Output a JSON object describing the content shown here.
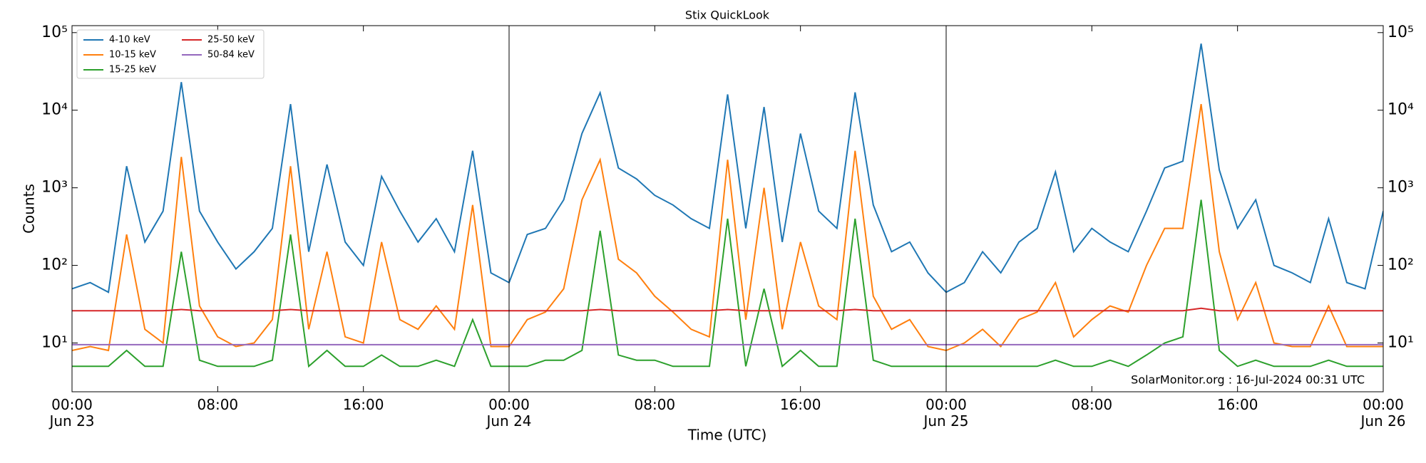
{
  "chart_data": {
    "type": "line",
    "title": "Stix QuickLook",
    "xlabel": "Time (UTC)",
    "ylabel": "Counts",
    "annotation": "SolarMonitor.org : 16-Jul-2024 00:31 UTC",
    "log_y": true,
    "grid": false,
    "legend": "upper left",
    "legend_columns": 2,
    "day_separators": true,
    "right_axis_labels": true,
    "x": [
      "Jun 23 00:00",
      "Jun 23 01:00",
      "Jun 23 02:00",
      "Jun 23 03:00",
      "Jun 23 04:00",
      "Jun 23 05:00",
      "Jun 23 06:00",
      "Jun 23 07:00",
      "Jun 23 08:00",
      "Jun 23 09:00",
      "Jun 23 10:00",
      "Jun 23 11:00",
      "Jun 23 12:00",
      "Jun 23 13:00",
      "Jun 23 14:00",
      "Jun 23 15:00",
      "Jun 23 16:00",
      "Jun 23 17:00",
      "Jun 23 18:00",
      "Jun 23 19:00",
      "Jun 23 20:00",
      "Jun 23 21:00",
      "Jun 23 22:00",
      "Jun 23 23:00",
      "Jun 24 00:00",
      "Jun 24 01:00",
      "Jun 24 02:00",
      "Jun 24 03:00",
      "Jun 24 04:00",
      "Jun 24 05:00",
      "Jun 24 06:00",
      "Jun 24 07:00",
      "Jun 24 08:00",
      "Jun 24 09:00",
      "Jun 24 10:00",
      "Jun 24 11:00",
      "Jun 24 12:00",
      "Jun 24 13:00",
      "Jun 24 14:00",
      "Jun 24 15:00",
      "Jun 24 16:00",
      "Jun 24 17:00",
      "Jun 24 18:00",
      "Jun 24 19:00",
      "Jun 24 20:00",
      "Jun 24 21:00",
      "Jun 24 22:00",
      "Jun 24 23:00",
      "Jun 25 00:00",
      "Jun 25 01:00",
      "Jun 25 02:00",
      "Jun 25 03:00",
      "Jun 25 04:00",
      "Jun 25 05:00",
      "Jun 25 06:00",
      "Jun 25 07:00",
      "Jun 25 08:00",
      "Jun 25 09:00",
      "Jun 25 10:00",
      "Jun 25 11:00",
      "Jun 25 12:00",
      "Jun 25 13:00",
      "Jun 25 14:00",
      "Jun 25 15:00",
      "Jun 25 16:00",
      "Jun 25 17:00",
      "Jun 25 18:00",
      "Jun 25 19:00",
      "Jun 25 20:00",
      "Jun 25 21:00",
      "Jun 25 22:00",
      "Jun 25 23:00",
      "Jun 26 00:00"
    ],
    "series": [
      {
        "name": "4-10 keV",
        "color": "#1f77b4",
        "values": [
          50,
          60,
          45,
          1900,
          200,
          500,
          23000,
          500,
          200,
          90,
          150,
          300,
          12000,
          150,
          2000,
          200,
          100,
          1400,
          500,
          200,
          400,
          150,
          3000,
          80,
          60,
          250,
          300,
          700,
          5000,
          16800,
          1800,
          1300,
          800,
          600,
          400,
          300,
          16000,
          300,
          11000,
          200,
          5000,
          500,
          300,
          17000,
          600,
          150,
          200,
          80,
          45,
          60,
          150,
          80,
          200,
          300,
          1600,
          150,
          300,
          200,
          150,
          500,
          1800,
          2200,
          72000,
          1700,
          300,
          700,
          100,
          80,
          60,
          400,
          60,
          50,
          500
        ]
      },
      {
        "name": "10-15 keV",
        "color": "#ff7f0e",
        "values": [
          8,
          9,
          8,
          250,
          15,
          10,
          2500,
          30,
          12,
          9,
          10,
          20,
          1900,
          15,
          150,
          12,
          10,
          200,
          20,
          15,
          30,
          15,
          600,
          9,
          9,
          20,
          25,
          50,
          700,
          2300,
          120,
          80,
          40,
          25,
          15,
          12,
          2300,
          20,
          1000,
          15,
          200,
          30,
          20,
          3000,
          40,
          15,
          20,
          9,
          8,
          10,
          15,
          9,
          20,
          25,
          60,
          12,
          20,
          30,
          25,
          100,
          300,
          300,
          12000,
          150,
          20,
          60,
          10,
          9,
          9,
          30,
          9,
          9,
          9
        ]
      },
      {
        "name": "15-25 keV",
        "color": "#2ca02c",
        "values": [
          5,
          5,
          5,
          8,
          5,
          5,
          150,
          6,
          5,
          5,
          5,
          6,
          250,
          5,
          8,
          5,
          5,
          7,
          5,
          5,
          6,
          5,
          20,
          5,
          5,
          5,
          6,
          6,
          8,
          280,
          7,
          6,
          6,
          5,
          5,
          5,
          400,
          5,
          50,
          5,
          8,
          5,
          5,
          400,
          6,
          5,
          5,
          5,
          5,
          5,
          5,
          5,
          5,
          5,
          6,
          5,
          5,
          6,
          5,
          7,
          10,
          12,
          700,
          8,
          5,
          6,
          5,
          5,
          5,
          6,
          5,
          5,
          5
        ]
      },
      {
        "name": "25-50 keV",
        "color": "#d62728",
        "values": [
          26,
          26,
          26,
          26,
          26,
          26,
          27,
          26,
          26,
          26,
          26,
          26,
          27,
          26,
          26,
          26,
          26,
          26,
          26,
          26,
          26,
          26,
          26,
          26,
          26,
          26,
          26,
          26,
          26,
          27,
          26,
          26,
          26,
          26,
          26,
          26,
          27,
          26,
          26,
          26,
          26,
          26,
          26,
          27,
          26,
          26,
          26,
          26,
          26,
          26,
          26,
          26,
          26,
          26,
          26,
          26,
          26,
          26,
          26,
          26,
          26,
          26,
          28,
          26,
          26,
          26,
          26,
          26,
          26,
          26,
          26,
          26,
          26
        ]
      },
      {
        "name": "50-84 keV",
        "color": "#9467bd",
        "values": [
          9.5,
          9.5,
          9.5,
          9.5,
          9.5,
          9.5,
          9.5,
          9.5,
          9.5,
          9.5,
          9.5,
          9.5,
          9.5,
          9.5,
          9.5,
          9.5,
          9.5,
          9.5,
          9.5,
          9.5,
          9.5,
          9.5,
          9.5,
          9.5,
          9.5,
          9.5,
          9.5,
          9.5,
          9.5,
          9.5,
          9.5,
          9.5,
          9.5,
          9.5,
          9.5,
          9.5,
          9.5,
          9.5,
          9.5,
          9.5,
          9.5,
          9.5,
          9.5,
          9.5,
          9.5,
          9.5,
          9.5,
          9.5,
          9.5,
          9.5,
          9.5,
          9.5,
          9.5,
          9.5,
          9.5,
          9.5,
          9.5,
          9.5,
          9.5,
          9.5,
          9.5,
          9.5,
          9.5,
          9.5,
          9.5,
          9.5,
          9.5,
          9.5,
          9.5,
          9.5,
          9.5,
          9.5,
          9.5
        ]
      }
    ],
    "xlim": [
      "Jun 23 00:00",
      "Jun 26 00:00"
    ],
    "xticks": [
      {
        "value": "Jun 23 00:00",
        "label": "00:00\nJun 23"
      },
      {
        "value": "Jun 23 08:00",
        "label": "08:00"
      },
      {
        "value": "Jun 23 16:00",
        "label": "16:00"
      },
      {
        "value": "Jun 24 00:00",
        "label": "00:00\nJun 24"
      },
      {
        "value": "Jun 24 08:00",
        "label": "08:00"
      },
      {
        "value": "Jun 24 16:00",
        "label": "16:00"
      },
      {
        "value": "Jun 25 00:00",
        "label": "00:00\nJun 25"
      },
      {
        "value": "Jun 25 08:00",
        "label": "08:00"
      },
      {
        "value": "Jun 25 16:00",
        "label": "16:00"
      },
      {
        "value": "Jun 26 00:00",
        "label": "00:00\nJun 26"
      }
    ],
    "ylim": [
      2.35,
      123000
    ],
    "yticks": [
      {
        "value": 10,
        "label": "10¹"
      },
      {
        "value": 100,
        "label": "10²"
      },
      {
        "value": 1000,
        "label": "10³"
      },
      {
        "value": 10000,
        "label": "10⁴"
      },
      {
        "value": 100000,
        "label": "10⁵"
      }
    ]
  }
}
